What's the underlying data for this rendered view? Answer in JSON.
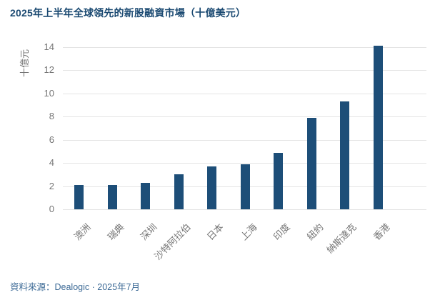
{
  "title": "2025年上半年全球領先的新股融資市場（十億美元）",
  "source": "資料來源：Dealogic · 2025年7月",
  "colors": {
    "bar": "#1d4e78",
    "title": "#1b4a72",
    "source": "#3c6a96",
    "axis_text": "#757575",
    "gridline": "#e4e4e4",
    "background": "#ffffff"
  },
  "chart_data": {
    "type": "bar",
    "title": "2025年上半年全球領先的新股融資市場（十億美元）",
    "ylabel": "十億元",
    "xlabel": "",
    "categories": [
      "澳洲",
      "瑞典",
      "深圳",
      "沙特阿拉伯",
      "日本",
      "上海",
      "印度",
      "紐約",
      "納斯達克",
      "香港"
    ],
    "values": [
      2.1,
      2.1,
      2.3,
      3.0,
      3.7,
      3.9,
      4.9,
      7.9,
      9.3,
      14.1
    ],
    "yticks": [
      0,
      2,
      4,
      6,
      8,
      10,
      12,
      14
    ],
    "ylim": [
      0,
      14
    ],
    "grid": true,
    "legend": "none",
    "bar_color": "#1d4e78",
    "x_tick_rotation": -45
  }
}
